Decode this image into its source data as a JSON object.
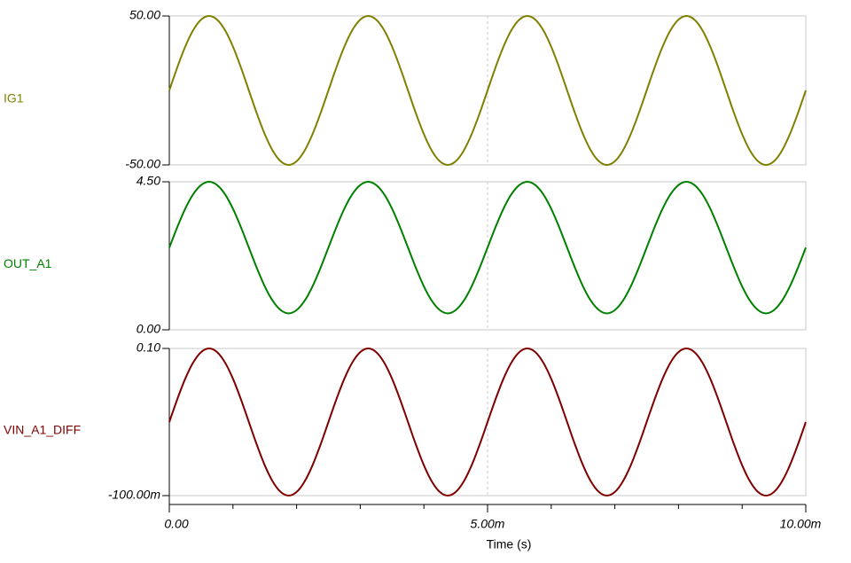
{
  "chart_data": [
    {
      "type": "line",
      "x": [
        0,
        0.000125,
        0.00025,
        0.000375,
        0.0005,
        0.000625,
        0.00075,
        0.000875,
        0.001,
        0.001125,
        0.00125,
        0.001375,
        0.0015,
        0.001625,
        0.00175,
        0.001875,
        0.002,
        0.002125,
        0.00225,
        0.002375,
        0.0025,
        0.002625,
        0.00275,
        0.002875,
        0.003,
        0.003125,
        0.00325,
        0.003375,
        0.0035,
        0.003625,
        0.00375,
        0.003875,
        0.004,
        0.004125,
        0.00425,
        0.004375,
        0.0045,
        0.004625,
        0.00475,
        0.004875,
        0.005,
        0.005125,
        0.00525,
        0.005375,
        0.0055,
        0.005625,
        0.00575,
        0.005875,
        0.006,
        0.006125,
        0.00625,
        0.006375,
        0.0065,
        0.006625,
        0.00675,
        0.006875,
        0.007,
        0.007125,
        0.00725,
        0.007375,
        0.0075,
        0.007625,
        0.00775,
        0.007875,
        0.008,
        0.008125,
        0.00825,
        0.008375,
        0.0085,
        0.008625,
        0.00875,
        0.008875,
        0.009,
        0.009125,
        0.00925,
        0.009375,
        0.0095,
        0.009625,
        0.00975,
        0.009875,
        0.01
      ],
      "series": [
        {
          "name": "IG1",
          "color": "#808000",
          "values": [
            0,
            15.45,
            29.39,
            40.45,
            47.55,
            50,
            47.55,
            40.45,
            29.39,
            15.45,
            0,
            -15.45,
            -29.39,
            -40.45,
            -47.55,
            -50,
            -47.55,
            -40.45,
            -29.39,
            -15.45,
            0,
            15.45,
            29.39,
            40.45,
            47.55,
            50,
            47.55,
            40.45,
            29.39,
            15.45,
            0,
            -15.45,
            -29.39,
            -40.45,
            -47.55,
            -50,
            -47.55,
            -40.45,
            -29.39,
            -15.45,
            0,
            15.45,
            29.39,
            40.45,
            47.55,
            50,
            47.55,
            40.45,
            29.39,
            15.45,
            0,
            -15.45,
            -29.39,
            -40.45,
            -47.55,
            -50,
            -47.55,
            -40.45,
            -29.39,
            -15.45,
            0,
            15.45,
            29.39,
            40.45,
            47.55,
            50,
            47.55,
            40.45,
            29.39,
            15.45,
            0,
            -15.45,
            -29.39,
            -40.45,
            -47.55,
            -50,
            -47.55,
            -40.45,
            -29.39,
            -15.45,
            0
          ]
        }
      ],
      "xlim": [
        0,
        0.01
      ],
      "ylim": [
        -50,
        50
      ],
      "yticks": [
        {
          "value": -50,
          "label": "-50.00"
        },
        {
          "value": 50,
          "label": "50.00"
        }
      ]
    },
    {
      "type": "line",
      "x": [
        0,
        0.000125,
        0.00025,
        0.000375,
        0.0005,
        0.000625,
        0.00075,
        0.000875,
        0.001,
        0.001125,
        0.00125,
        0.001375,
        0.0015,
        0.001625,
        0.00175,
        0.001875,
        0.002,
        0.002125,
        0.00225,
        0.002375,
        0.0025,
        0.002625,
        0.00275,
        0.002875,
        0.003,
        0.003125,
        0.00325,
        0.003375,
        0.0035,
        0.003625,
        0.00375,
        0.003875,
        0.004,
        0.004125,
        0.00425,
        0.004375,
        0.0045,
        0.004625,
        0.00475,
        0.004875,
        0.005,
        0.005125,
        0.00525,
        0.005375,
        0.0055,
        0.005625,
        0.00575,
        0.005875,
        0.006,
        0.006125,
        0.00625,
        0.006375,
        0.0065,
        0.006625,
        0.00675,
        0.006875,
        0.007,
        0.007125,
        0.00725,
        0.007375,
        0.0075,
        0.007625,
        0.00775,
        0.007875,
        0.008,
        0.008125,
        0.00825,
        0.008375,
        0.0085,
        0.008625,
        0.00875,
        0.008875,
        0.009,
        0.009125,
        0.00925,
        0.009375,
        0.0095,
        0.009625,
        0.00975,
        0.009875,
        0.01
      ],
      "series": [
        {
          "name": "OUT_A1",
          "color": "#008000",
          "values": [
            2.5,
            3.12,
            3.68,
            4.12,
            4.4,
            4.5,
            4.4,
            4.12,
            3.68,
            3.12,
            2.5,
            1.88,
            1.32,
            0.88,
            0.6,
            0.5,
            0.6,
            0.88,
            1.32,
            1.88,
            2.5,
            3.12,
            3.68,
            4.12,
            4.4,
            4.5,
            4.4,
            4.12,
            3.68,
            3.12,
            2.5,
            1.88,
            1.32,
            0.88,
            0.6,
            0.5,
            0.6,
            0.88,
            1.32,
            1.88,
            2.5,
            3.12,
            3.68,
            4.12,
            4.4,
            4.5,
            4.4,
            4.12,
            3.68,
            3.12,
            2.5,
            1.88,
            1.32,
            0.88,
            0.6,
            0.5,
            0.6,
            0.88,
            1.32,
            1.88,
            2.5,
            3.12,
            3.68,
            4.12,
            4.4,
            4.5,
            4.4,
            4.12,
            3.68,
            3.12,
            2.5,
            1.88,
            1.32,
            0.88,
            0.6,
            0.5,
            0.6,
            0.88,
            1.32,
            1.88,
            2.5
          ]
        }
      ],
      "xlim": [
        0,
        0.01
      ],
      "ylim": [
        0,
        4.5
      ],
      "yticks": [
        {
          "value": 0,
          "label": "0.00"
        },
        {
          "value": 4.5,
          "label": "4.50"
        }
      ]
    },
    {
      "type": "line",
      "x": [
        0,
        0.000125,
        0.00025,
        0.000375,
        0.0005,
        0.000625,
        0.00075,
        0.000875,
        0.001,
        0.001125,
        0.00125,
        0.001375,
        0.0015,
        0.001625,
        0.00175,
        0.001875,
        0.002,
        0.002125,
        0.00225,
        0.002375,
        0.0025,
        0.002625,
        0.00275,
        0.002875,
        0.003,
        0.003125,
        0.00325,
        0.003375,
        0.0035,
        0.003625,
        0.00375,
        0.003875,
        0.004,
        0.004125,
        0.00425,
        0.004375,
        0.0045,
        0.004625,
        0.00475,
        0.004875,
        0.005,
        0.005125,
        0.00525,
        0.005375,
        0.0055,
        0.005625,
        0.00575,
        0.005875,
        0.006,
        0.006125,
        0.00625,
        0.006375,
        0.0065,
        0.006625,
        0.00675,
        0.006875,
        0.007,
        0.007125,
        0.00725,
        0.007375,
        0.0075,
        0.007625,
        0.00775,
        0.007875,
        0.008,
        0.008125,
        0.00825,
        0.008375,
        0.0085,
        0.008625,
        0.00875,
        0.008875,
        0.009,
        0.009125,
        0.00925,
        0.009375,
        0.0095,
        0.009625,
        0.00975,
        0.009875,
        0.01
      ],
      "series": [
        {
          "name": "VIN_A1_DIFF",
          "color": "#800000",
          "values": [
            0,
            0.0309,
            0.0588,
            0.0809,
            0.0951,
            0.1,
            0.0951,
            0.0809,
            0.0588,
            0.0309,
            0,
            -0.0309,
            -0.0588,
            -0.0809,
            -0.0951,
            -0.1,
            -0.0951,
            -0.0809,
            -0.0588,
            -0.0309,
            0,
            0.0309,
            0.0588,
            0.0809,
            0.0951,
            0.1,
            0.0951,
            0.0809,
            0.0588,
            0.0309,
            0,
            -0.0309,
            -0.0588,
            -0.0809,
            -0.0951,
            -0.1,
            -0.0951,
            -0.0809,
            -0.0588,
            -0.0309,
            0,
            0.0309,
            0.0588,
            0.0809,
            0.0951,
            0.1,
            0.0951,
            0.0809,
            0.0588,
            0.0309,
            0,
            -0.0309,
            -0.0588,
            -0.0809,
            -0.0951,
            -0.1,
            -0.0951,
            -0.0809,
            -0.0588,
            -0.0309,
            0,
            0.0309,
            0.0588,
            0.0809,
            0.0951,
            0.1,
            0.0951,
            0.0809,
            0.0588,
            0.0309,
            0,
            -0.0309,
            -0.0588,
            -0.0809,
            -0.0951,
            -0.1,
            -0.0951,
            -0.0809,
            -0.0588,
            -0.0309,
            0
          ]
        }
      ],
      "xlim": [
        0,
        0.01
      ],
      "ylim": [
        -0.1,
        0.1
      ],
      "yticks": [
        {
          "value": -0.1,
          "label": "-100.00m"
        },
        {
          "value": 0.1,
          "label": "0.10"
        }
      ],
      "xticks": [
        {
          "value": 0,
          "label": "0.00"
        },
        {
          "value": 0.005,
          "label": "5.00m"
        },
        {
          "value": 0.01,
          "label": "10.00m"
        }
      ],
      "xminorticks": [
        0.001,
        0.002,
        0.003,
        0.004,
        0.006,
        0.007,
        0.008,
        0.009
      ],
      "xlabel": "Time (s)"
    }
  ]
}
